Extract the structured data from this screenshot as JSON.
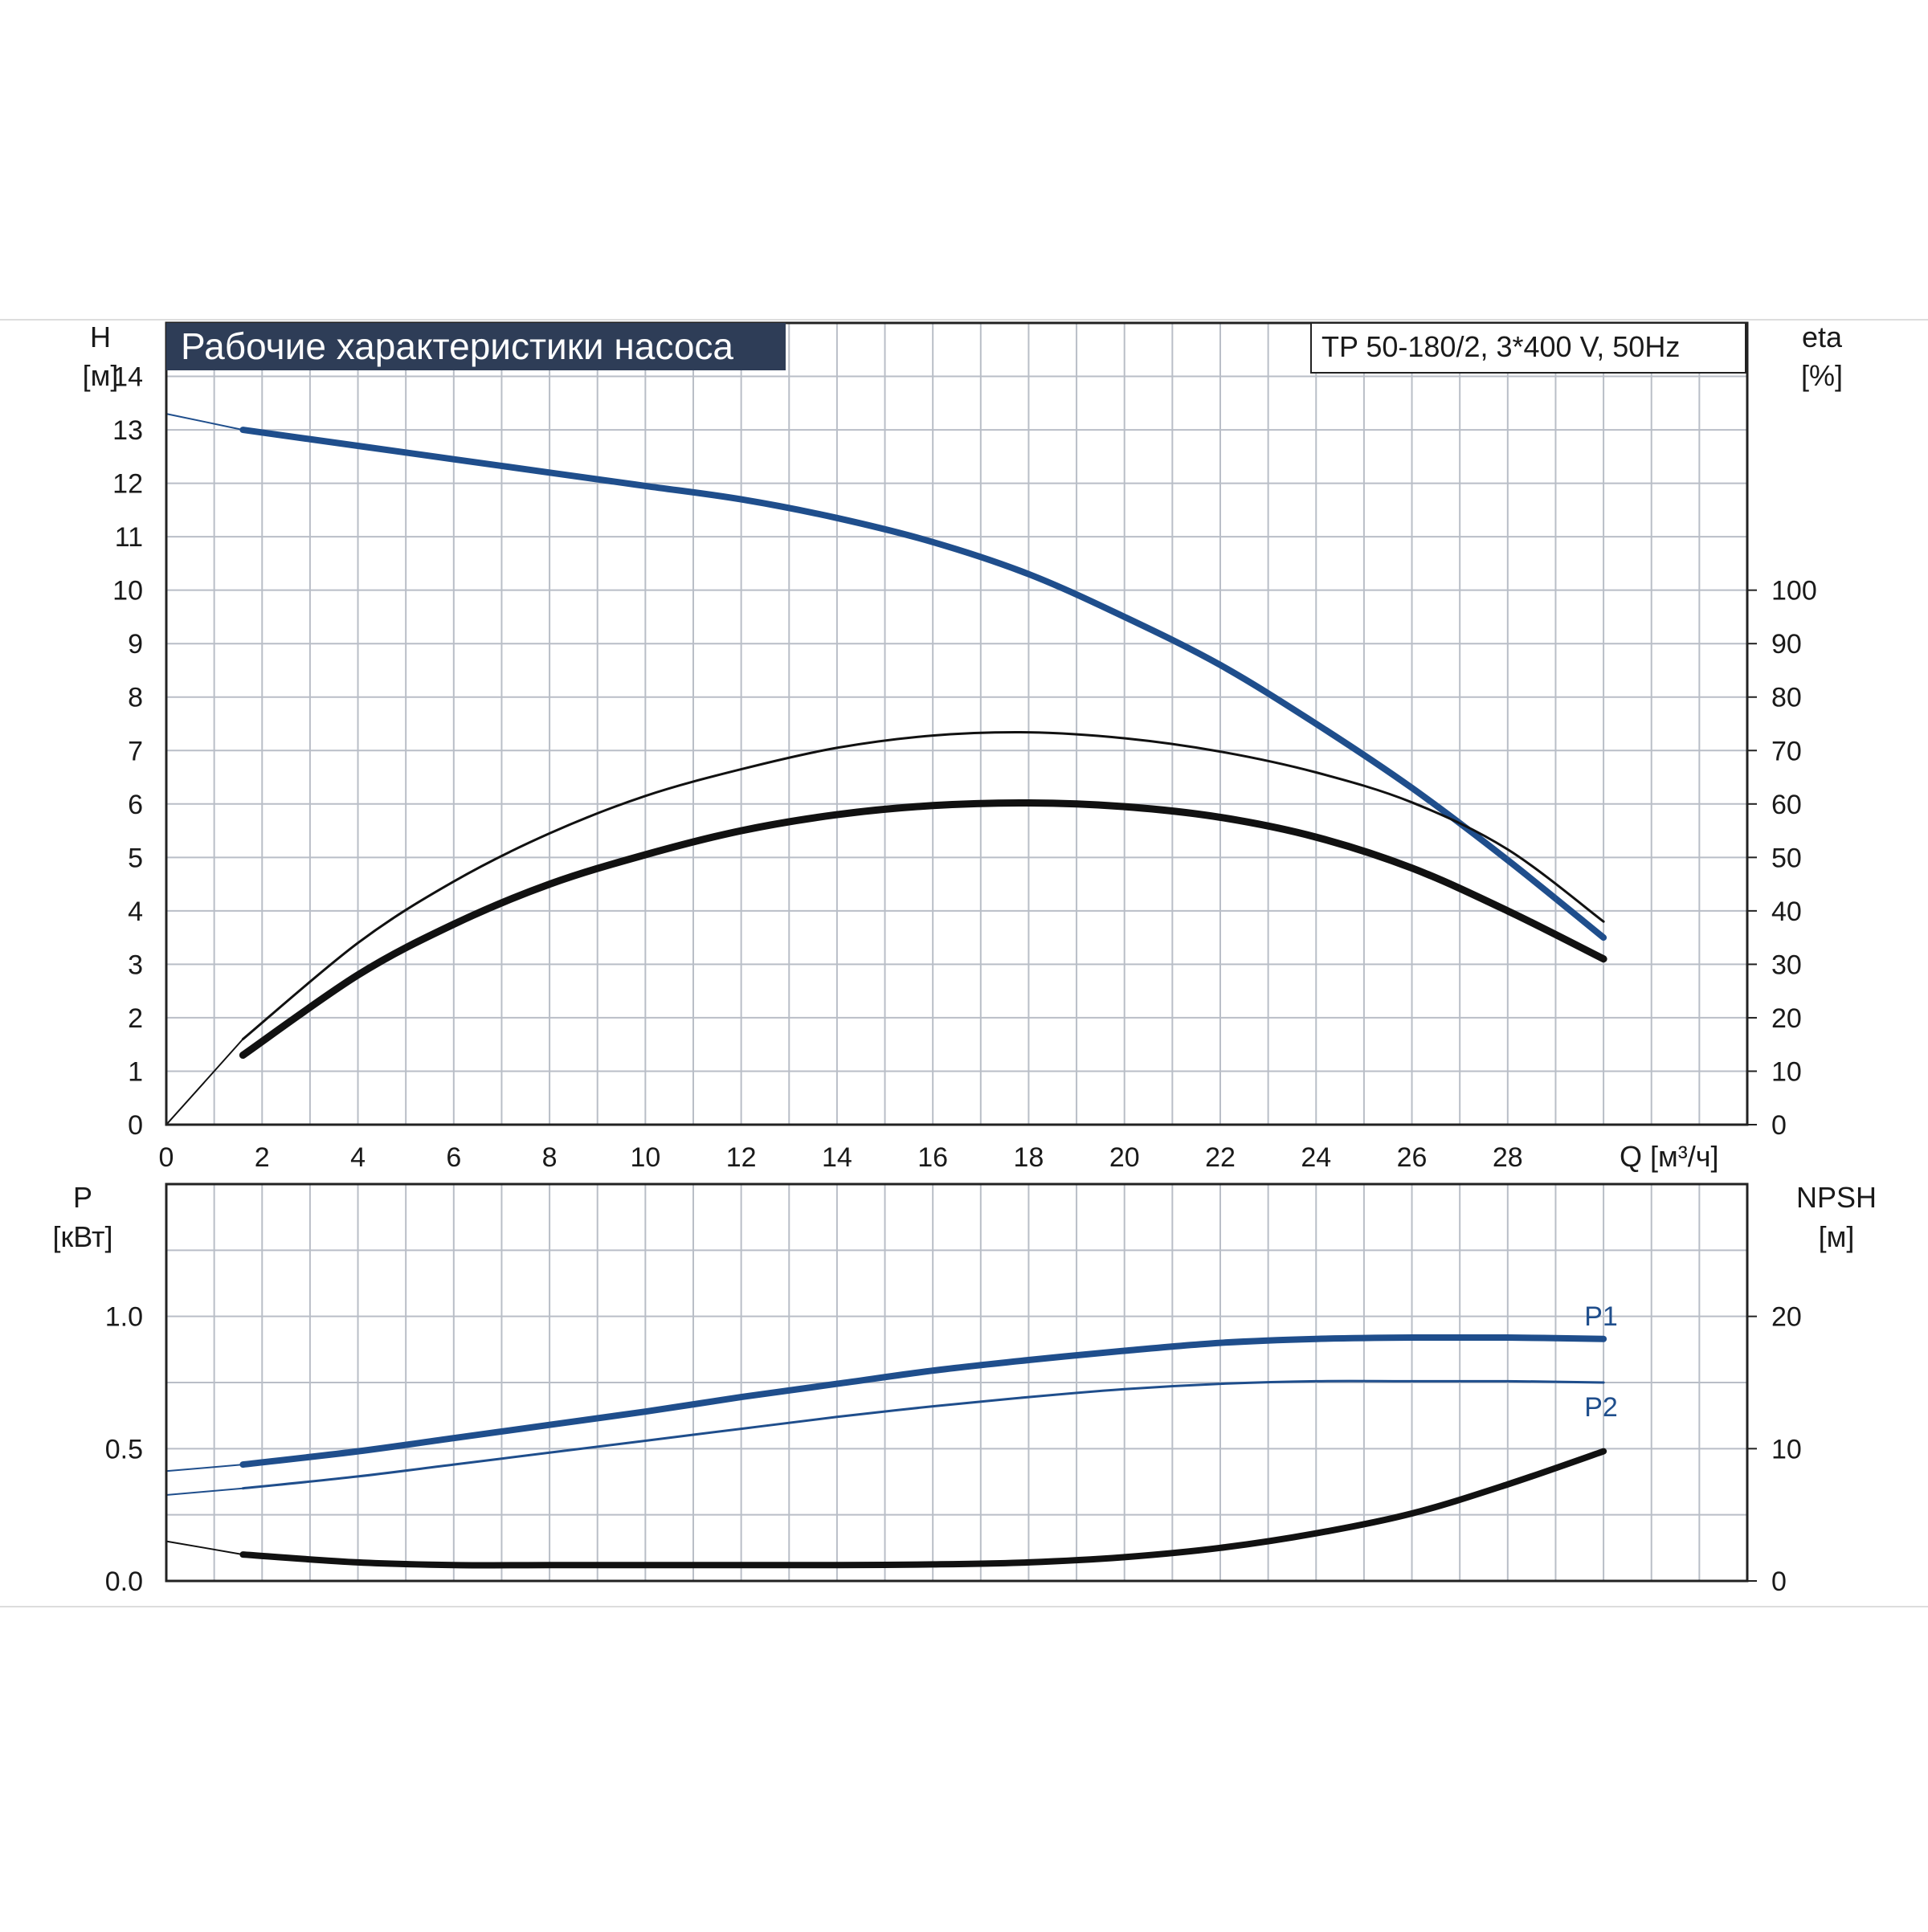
{
  "colors": {
    "title_bg": "#2e3d57",
    "blue_curve": "#1f4e8c",
    "black_curve": "#111111",
    "grid": "#b9bec7",
    "frame": "#222222",
    "page_line": "#dddddd"
  },
  "chart_data": [
    {
      "type": "line",
      "title": "Рабочие характеристики насоса",
      "model": "TP 50-180/2, 3*400 V, 50Hz",
      "xlabel": "Q [м³/ч]",
      "ylabel_left": [
        "H",
        "[м]"
      ],
      "ylabel_right": [
        "eta",
        "[%]"
      ],
      "xlim": [
        0,
        33
      ],
      "ylim_left": [
        0,
        15
      ],
      "ylim_right": [
        0,
        150
      ],
      "x_ticks": [
        "0",
        "2",
        "4",
        "6",
        "8",
        "10",
        "12",
        "14",
        "16",
        "18",
        "20",
        "22",
        "24",
        "26",
        "28"
      ],
      "y_ticks_left": [
        "0",
        "1",
        "2",
        "3",
        "4",
        "5",
        "6",
        "7",
        "8",
        "9",
        "10",
        "11",
        "12",
        "13",
        "14"
      ],
      "y_ticks_right": [
        "0",
        "10",
        "20",
        "30",
        "40",
        "50",
        "60",
        "70",
        "80",
        "90",
        "100"
      ],
      "grid": true,
      "series": [
        {
          "axis": "left",
          "color": "blue",
          "width": "thick",
          "extrapolated_to_zero": true,
          "x": [
            0,
            1.6,
            4,
            6,
            8,
            10,
            12,
            14,
            16,
            18,
            20,
            22,
            24,
            26,
            28,
            30
          ],
          "y": [
            13.3,
            13.0,
            12.7,
            12.45,
            12.2,
            11.95,
            11.7,
            11.35,
            10.9,
            10.3,
            9.5,
            8.6,
            7.5,
            6.3,
            4.95,
            3.5
          ]
        },
        {
          "axis": "right",
          "color": "black",
          "width": "thin",
          "extrapolated_to_zero": true,
          "x": [
            0,
            1.6,
            4,
            6,
            8,
            10,
            12,
            14,
            16,
            18,
            20,
            22,
            24,
            26,
            28,
            30
          ],
          "y": [
            0,
            16,
            34,
            45.5,
            54.5,
            61.5,
            66.5,
            70.5,
            72.8,
            73.4,
            72.3,
            69.8,
            65.9,
            60.3,
            51.5,
            38
          ]
        },
        {
          "axis": "right",
          "color": "black",
          "width": "thick",
          "extrapolated_to_zero": false,
          "x": [
            1.6,
            4,
            6,
            8,
            10,
            12,
            14,
            16,
            18,
            20,
            22,
            24,
            26,
            28,
            30
          ],
          "y": [
            13,
            28,
            37.5,
            45,
            50.5,
            55,
            58,
            59.7,
            60.2,
            59.5,
            57.5,
            53.8,
            48,
            40,
            31
          ]
        }
      ]
    },
    {
      "type": "line",
      "ylabel_left": [
        "P",
        "[кВт]"
      ],
      "ylabel_right": [
        "NPSH",
        "[м]"
      ],
      "xlim": [
        0,
        33
      ],
      "ylim_left": [
        0,
        1.5
      ],
      "ylim_right": [
        0,
        30
      ],
      "y_ticks_left": [
        "0.0",
        "0.5",
        "1.0"
      ],
      "y_ticks_right": [
        "0",
        "10",
        "20"
      ],
      "grid": true,
      "series": [
        {
          "name": "P1",
          "axis": "left",
          "color": "blue",
          "width": "thick",
          "extrapolated_to_zero": true,
          "x": [
            0,
            1.6,
            4,
            6,
            8,
            10,
            12,
            14,
            16,
            18,
            20,
            22,
            24,
            26,
            28,
            30
          ],
          "y": [
            0.415,
            0.44,
            0.49,
            0.54,
            0.59,
            0.64,
            0.695,
            0.745,
            0.795,
            0.835,
            0.87,
            0.9,
            0.915,
            0.92,
            0.92,
            0.915
          ]
        },
        {
          "name": "P2",
          "axis": "left",
          "color": "blue",
          "width": "thin",
          "extrapolated_to_zero": true,
          "x": [
            0,
            1.6,
            4,
            6,
            8,
            10,
            12,
            14,
            16,
            18,
            20,
            22,
            24,
            26,
            28,
            30
          ],
          "y": [
            0.325,
            0.35,
            0.395,
            0.44,
            0.485,
            0.53,
            0.575,
            0.62,
            0.66,
            0.695,
            0.725,
            0.745,
            0.755,
            0.755,
            0.755,
            0.75
          ]
        },
        {
          "axis": "right",
          "color": "black",
          "width": "thick",
          "extrapolated_to_zero": true,
          "x": [
            0,
            1.6,
            4,
            6,
            8,
            10,
            12,
            14,
            16,
            18,
            20,
            22,
            24,
            26,
            28,
            30
          ],
          "y": [
            3.0,
            2.0,
            1.4,
            1.2,
            1.2,
            1.2,
            1.2,
            1.2,
            1.25,
            1.4,
            1.8,
            2.5,
            3.6,
            5.1,
            7.3,
            9.8
          ]
        }
      ]
    }
  ]
}
